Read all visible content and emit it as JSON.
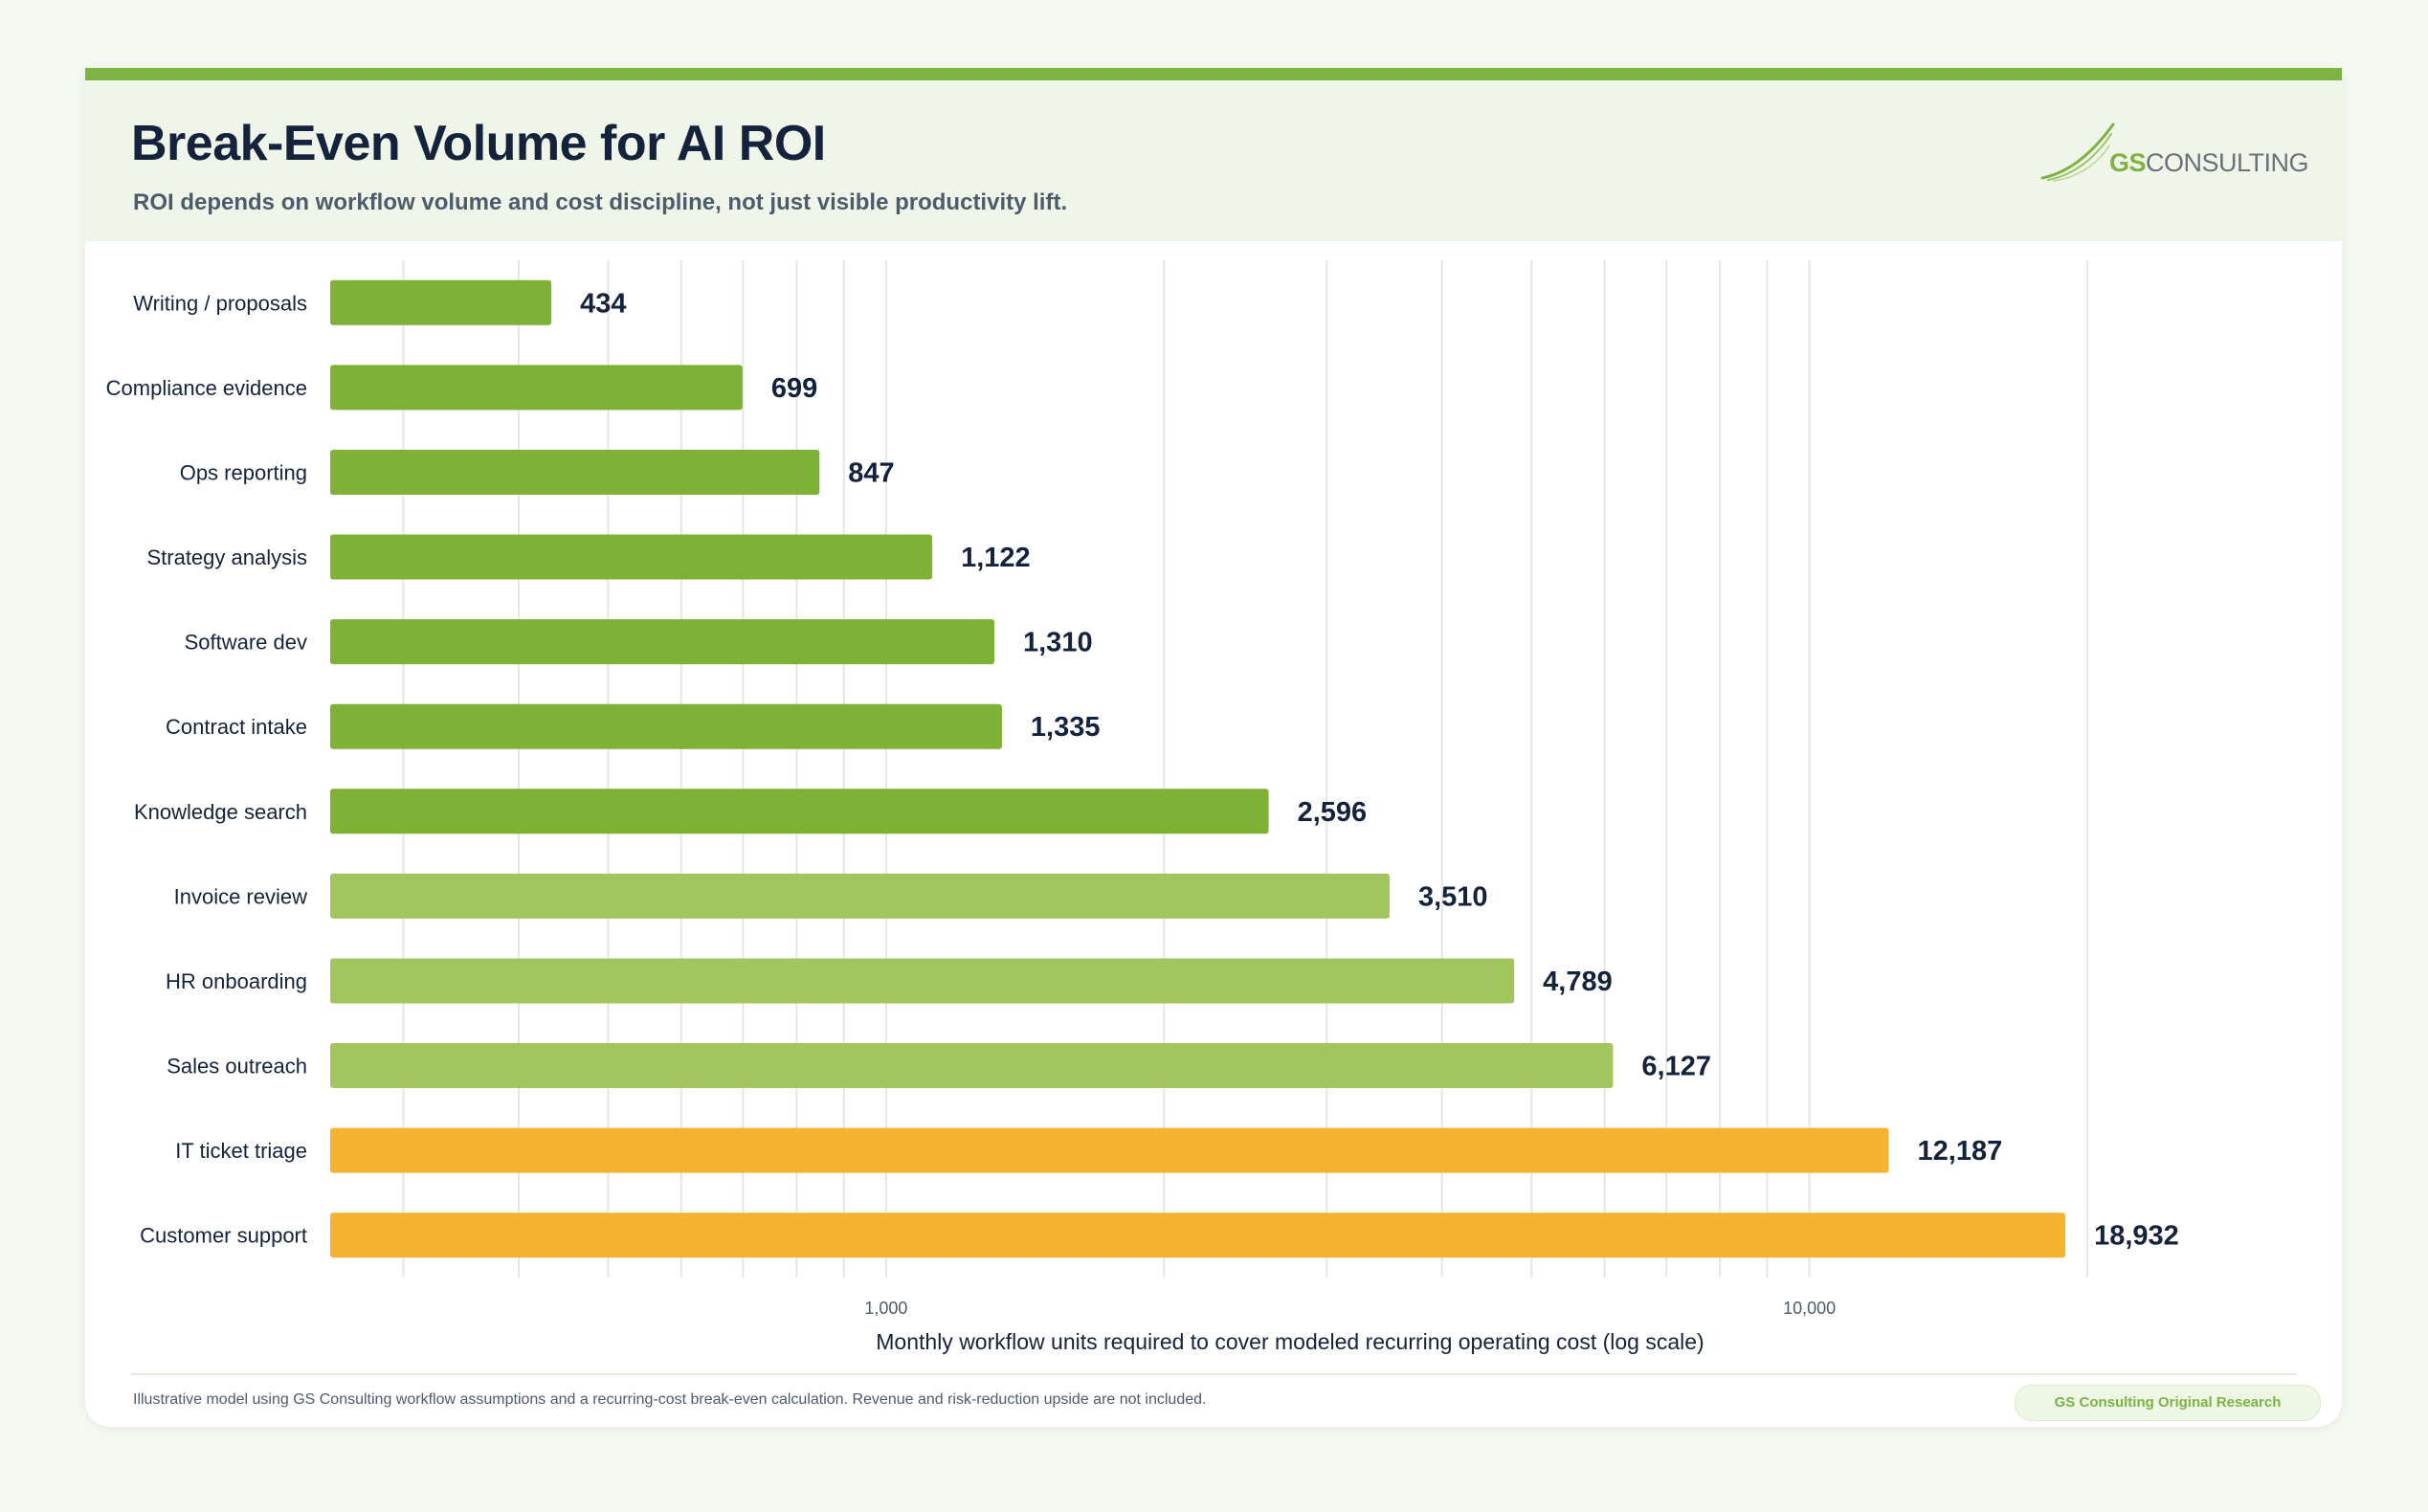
{
  "header": {
    "title": "Break-Even Volume for AI ROI",
    "subtitle": "ROI depends on workflow volume and cost discipline, not just visible productivity lift.",
    "logo": {
      "accent": "GS",
      "rest": "CONSULTING"
    }
  },
  "chart_data": {
    "type": "bar",
    "orientation": "horizontal",
    "title": "Break-Even Volume for AI ROI",
    "xlabel": "Monthly workflow units required to cover modeled recurring operating cost (log scale)",
    "ylabel": "",
    "x_scale": "log",
    "xlim": [
      250,
      30000
    ],
    "x_ticks": [
      1000,
      10000
    ],
    "x_tick_labels": [
      "1,000",
      "10,000"
    ],
    "grid": true,
    "categories": [
      "Writing / proposals",
      "Compliance evidence",
      "Ops reporting",
      "Strategy analysis",
      "Software dev",
      "Contract intake",
      "Knowledge search",
      "Invoice review",
      "HR onboarding",
      "Sales outreach",
      "IT ticket triage",
      "Customer support"
    ],
    "values": [
      434,
      699,
      847,
      1122,
      1310,
      1335,
      2596,
      3510,
      4789,
      6127,
      12187,
      18932
    ],
    "value_labels": [
      "434",
      "699",
      "847",
      "1,122",
      "1,310",
      "1,335",
      "2,596",
      "3,510",
      "4,789",
      "6,127",
      "12,187",
      "18,932"
    ],
    "bar_colors": [
      "#7fb136",
      "#7fb136",
      "#7fb136",
      "#7fb136",
      "#7fb136",
      "#7fb136",
      "#7fb136",
      "#a2c55d",
      "#a2c55d",
      "#a2c55d",
      "#f5b331",
      "#f5b331"
    ]
  },
  "footer": {
    "note": "Illustrative model using GS Consulting workflow assumptions and a recurring-cost break-even calculation. Revenue and risk-reduction upside are not included.",
    "badge": "GS Consulting Original Research"
  },
  "colors": {
    "accent_green": "#7cb342",
    "header_bg": "#eff6e9",
    "title_text": "#14233b",
    "page_bg": "#f5f8f1"
  }
}
